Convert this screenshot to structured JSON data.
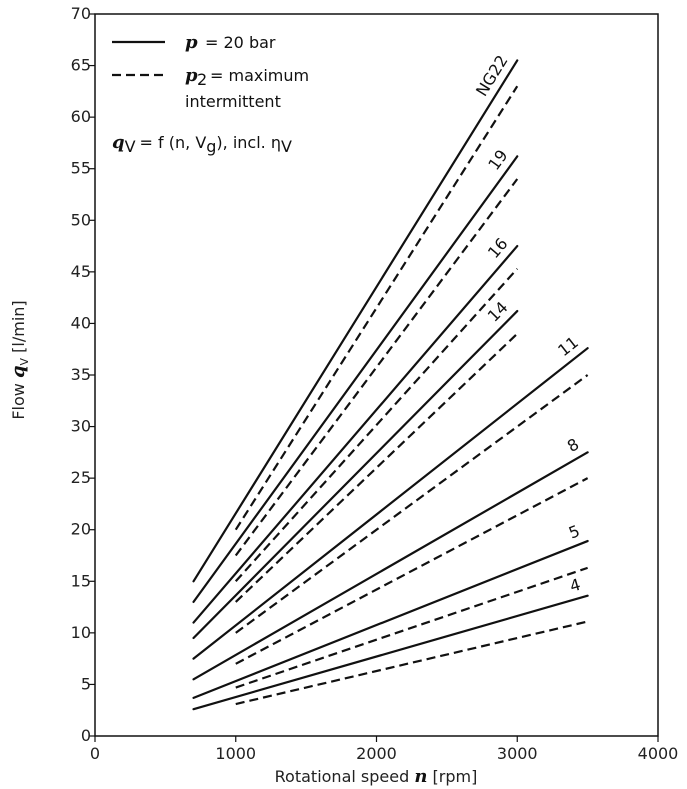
{
  "chart_data": {
    "type": "line",
    "xlabel_text": "Rotational speed",
    "xlabel_symbol": "n",
    "xlabel_unit": "[rpm]",
    "ylabel_text": "Flow",
    "ylabel_symbol": "q",
    "ylabel_sub": "V",
    "ylabel_unit": "[l/min]",
    "xlim": [
      0,
      4000
    ],
    "ylim": [
      0,
      70
    ],
    "xticks": [
      0,
      1000,
      2000,
      3000,
      4000
    ],
    "yticks": [
      0,
      5,
      10,
      15,
      20,
      25,
      30,
      35,
      40,
      45,
      50,
      55,
      60,
      65,
      70
    ],
    "grid": false,
    "legend": {
      "placement": "top-left",
      "solid_symbol": "p",
      "solid_text": "= 20 bar",
      "dashed_symbol": "p",
      "dashed_sub": "2",
      "dashed_text": "= maximum",
      "dashed_text2": "intermittent",
      "formula": "q",
      "formula_sub": "V",
      "formula_rest": "= f (n, V",
      "formula_sub2": "g",
      "formula_tail": "), incl. η",
      "formula_sub3": "V"
    },
    "series": [
      {
        "name": "NG22",
        "solid": {
          "x": [
            700,
            3000
          ],
          "y": [
            15.0,
            65.5
          ]
        },
        "dashed": {
          "x": [
            1000,
            3000
          ],
          "y": [
            20.0,
            63.0
          ]
        }
      },
      {
        "name": "19",
        "solid": {
          "x": [
            700,
            3000
          ],
          "y": [
            13.0,
            56.2
          ]
        },
        "dashed": {
          "x": [
            1000,
            3000
          ],
          "y": [
            17.5,
            54.0
          ]
        }
      },
      {
        "name": "16",
        "solid": {
          "x": [
            700,
            3000
          ],
          "y": [
            11.0,
            47.5
          ]
        },
        "dashed": {
          "x": [
            1000,
            3000
          ],
          "y": [
            15.0,
            45.3
          ]
        }
      },
      {
        "name": "14",
        "solid": {
          "x": [
            700,
            3000
          ],
          "y": [
            9.5,
            41.2
          ]
        },
        "dashed": {
          "x": [
            1000,
            3000
          ],
          "y": [
            13.0,
            39.0
          ]
        }
      },
      {
        "name": "11",
        "solid": {
          "x": [
            700,
            3500
          ],
          "y": [
            7.5,
            37.6
          ]
        },
        "dashed": {
          "x": [
            1000,
            3500
          ],
          "y": [
            10.0,
            35.0
          ]
        }
      },
      {
        "name": "8",
        "solid": {
          "x": [
            700,
            3500
          ],
          "y": [
            5.5,
            27.5
          ]
        },
        "dashed": {
          "x": [
            1000,
            3500
          ],
          "y": [
            7.0,
            25.0
          ]
        }
      },
      {
        "name": "5",
        "solid": {
          "x": [
            700,
            3500
          ],
          "y": [
            3.7,
            18.9
          ]
        },
        "dashed": {
          "x": [
            1000,
            3500
          ],
          "y": [
            4.7,
            16.3
          ]
        }
      },
      {
        "name": "4",
        "solid": {
          "x": [
            700,
            3500
          ],
          "y": [
            2.6,
            13.6
          ]
        },
        "dashed": {
          "x": [
            1000,
            3500
          ],
          "y": [
            3.1,
            11.1
          ]
        }
      }
    ]
  }
}
